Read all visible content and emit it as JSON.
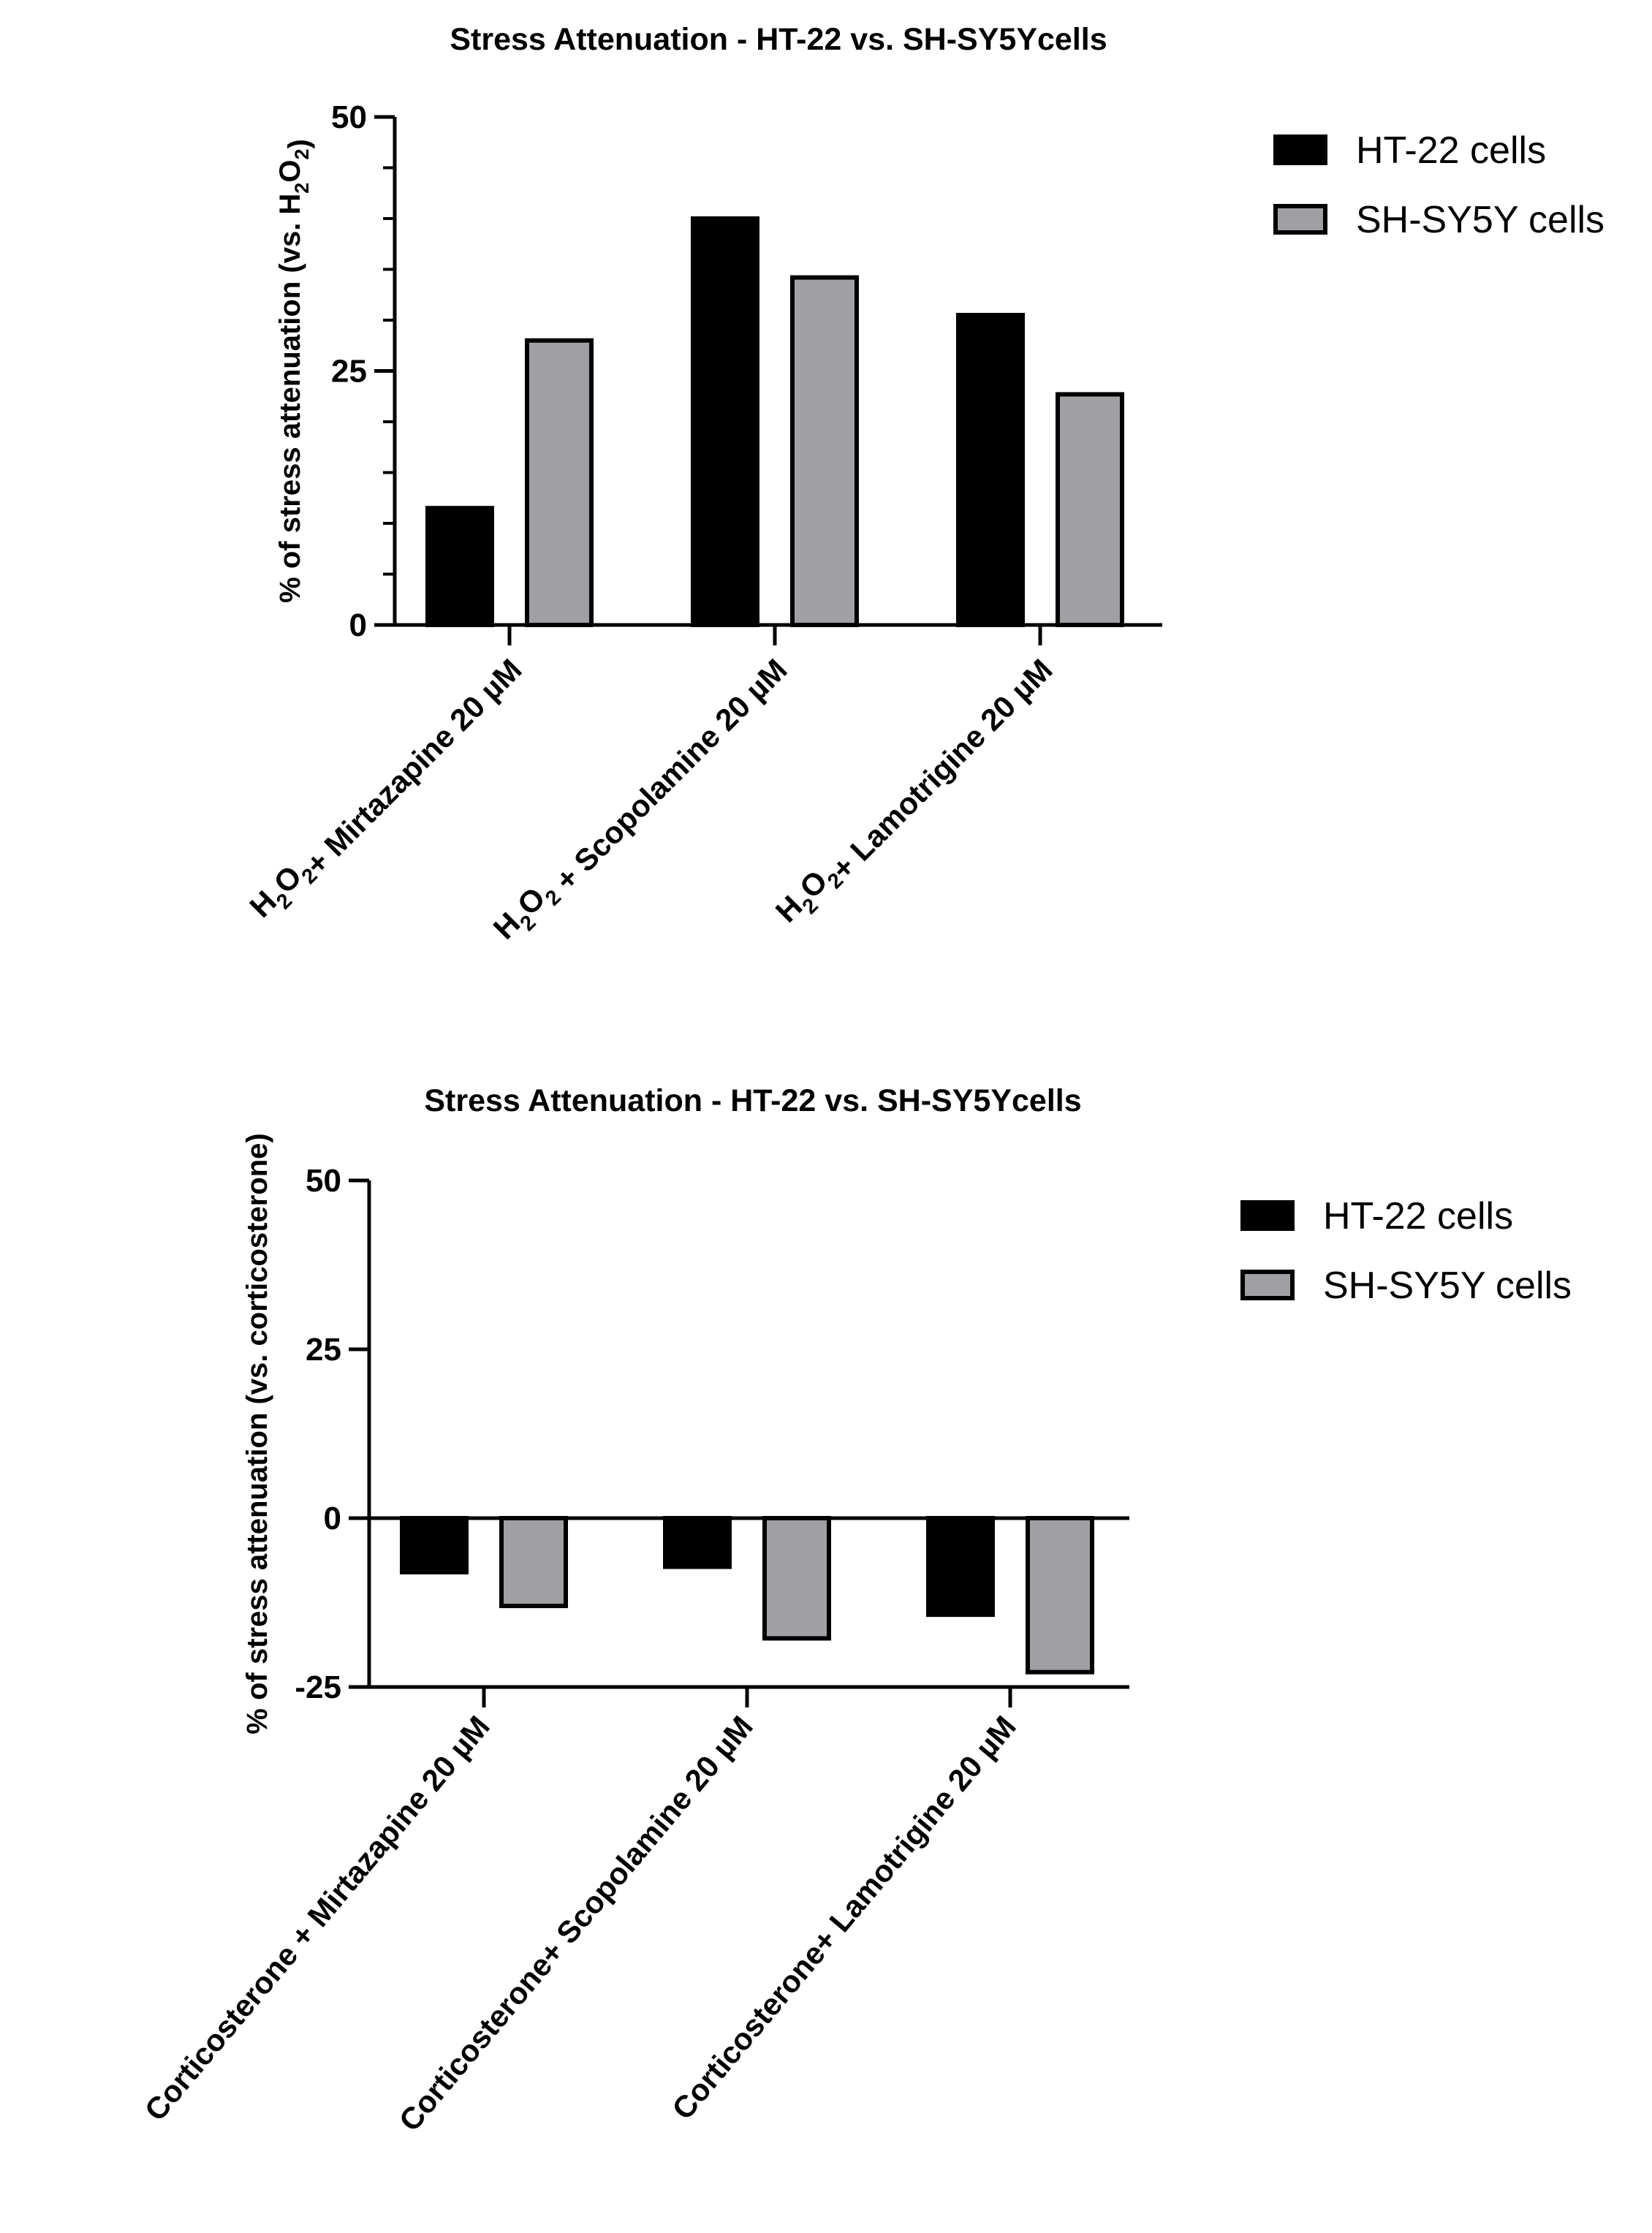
{
  "chart_data": [
    {
      "type": "bar",
      "title": "Stress Attenuation - HT-22 vs. SH-SY5Ycells",
      "ylabel": "% of stress attenuation (vs. H2O2)",
      "ylim": [
        0,
        50
      ],
      "yticks": [
        0,
        25,
        50
      ],
      "categories": [
        "H2O2+ Mirtazapine 20 µM",
        "H2O2 + Scopolamine 20 µM",
        "H2O2+ Lamotrigine 20 µM"
      ],
      "series": [
        {
          "name": "HT-22 cells",
          "color": "#000000",
          "values": [
            11.5,
            40,
            30.5
          ]
        },
        {
          "name": "SH-SY5Y cells",
          "color": "#a0a0a4",
          "values": [
            28,
            34.2,
            22.7
          ]
        }
      ],
      "legend": "top-right"
    },
    {
      "type": "bar",
      "title": "Stress Attenuation - HT-22 vs. SH-SY5Ycells",
      "ylabel": "% of stress attenuation (vs. corticosterone)",
      "ylim": [
        -25,
        50
      ],
      "yticks": [
        -25,
        0,
        25,
        50
      ],
      "categories": [
        "Corticosterone + Mirtazapine 20 µM",
        "Corticosterone+ Scopolamine 20 µM",
        "Corticosterone+ Lamotrigine 20 µM"
      ],
      "series": [
        {
          "name": "HT-22 cells",
          "color": "#000000",
          "values": [
            -8,
            -7.2,
            -14.3
          ]
        },
        {
          "name": "SH-SY5Y cells",
          "color": "#a0a0a4",
          "values": [
            -13,
            -17.8,
            -22.8
          ]
        }
      ],
      "legend": "top-right"
    }
  ]
}
